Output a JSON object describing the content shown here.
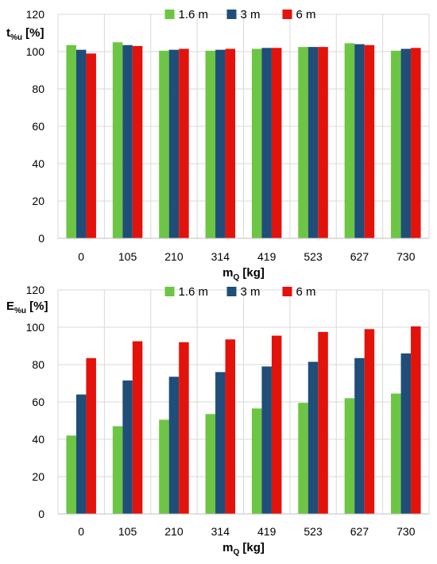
{
  "chart_data": [
    {
      "type": "bar",
      "ylabel_main": "t",
      "ylabel_sub": "%u",
      "ylabel_unit": " [%]",
      "xlabel_main": "m",
      "xlabel_sub": "Q",
      "xlabel_unit": " [kg]",
      "categories": [
        "0",
        "105",
        "210",
        "314",
        "419",
        "523",
        "627",
        "730"
      ],
      "ylim": [
        0,
        120
      ],
      "yticks": [
        "0",
        "20",
        "40",
        "60",
        "80",
        "100",
        "120"
      ],
      "grid": true,
      "legend_position": "top",
      "series": [
        {
          "name": "1.6 m",
          "color": "#6cc644",
          "values": [
            103.5,
            105,
            100.5,
            100.5,
            101.5,
            102.5,
            104.5,
            100.5
          ]
        },
        {
          "name": "3 m",
          "color": "#1f4e79",
          "values": [
            101,
            103.5,
            101,
            101,
            102,
            102.5,
            104,
            101.5
          ]
        },
        {
          "name": "6 m",
          "color": "#e3120b",
          "values": [
            99,
            103,
            101.5,
            101.5,
            102,
            102.5,
            103.5,
            102
          ]
        }
      ]
    },
    {
      "type": "bar",
      "ylabel_main": "E",
      "ylabel_sub": "%u",
      "ylabel_unit": " [%]",
      "xlabel_main": "m",
      "xlabel_sub": "Q",
      "xlabel_unit": " [kg]",
      "categories": [
        "0",
        "105",
        "210",
        "314",
        "419",
        "523",
        "627",
        "730"
      ],
      "ylim": [
        0,
        120
      ],
      "yticks": [
        "0",
        "20",
        "40",
        "60",
        "80",
        "100",
        "120"
      ],
      "grid": true,
      "legend_position": "top",
      "series": [
        {
          "name": "1.6 m",
          "color": "#6cc644",
          "values": [
            42,
            47,
            50.5,
            53.5,
            56.5,
            59.5,
            62,
            64.5
          ]
        },
        {
          "name": "3 m",
          "color": "#1f4e79",
          "values": [
            64,
            71.5,
            73.5,
            76,
            79,
            81.5,
            83.5,
            86
          ]
        },
        {
          "name": "6 m",
          "color": "#e3120b",
          "values": [
            83.5,
            92.5,
            92,
            93.5,
            95.5,
            97.5,
            99,
            100.5
          ]
        }
      ]
    }
  ]
}
